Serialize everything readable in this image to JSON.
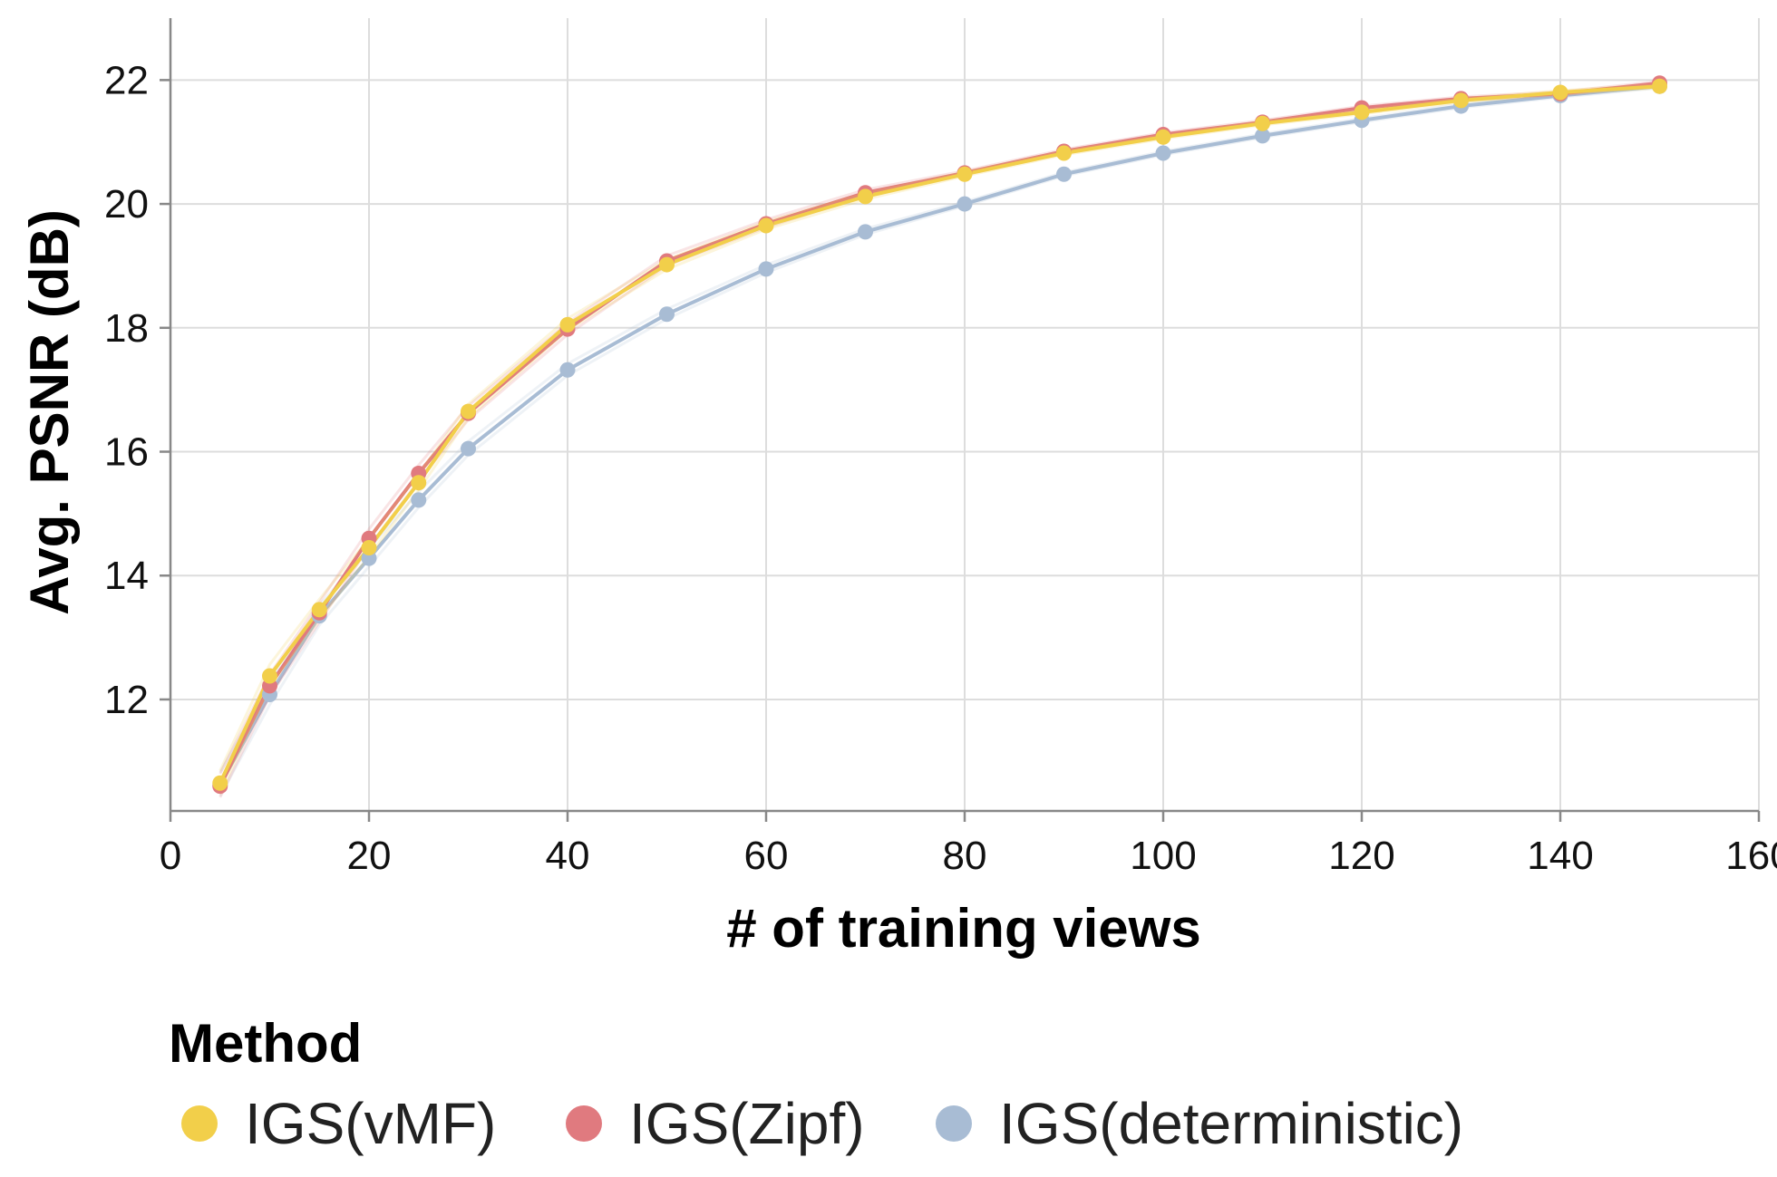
{
  "chart_data": {
    "type": "line",
    "title": "",
    "xlabel": "# of training views",
    "ylabel": "Avg. PSNR (dB)",
    "xlim": [
      0,
      160
    ],
    "ylim": [
      10.2,
      23
    ],
    "xticks": [
      0,
      20,
      40,
      60,
      80,
      100,
      120,
      140,
      160
    ],
    "yticks": [
      12,
      14,
      16,
      18,
      20,
      22
    ],
    "grid": true,
    "legend": {
      "title": "Method",
      "position": "bottom-left"
    },
    "x": [
      5,
      10,
      15,
      20,
      25,
      30,
      40,
      50,
      60,
      70,
      80,
      90,
      100,
      110,
      120,
      130,
      140,
      150
    ],
    "series": [
      {
        "name": "IGS(vMF)",
        "color": "#f2cf4a",
        "values": [
          10.65,
          12.38,
          13.45,
          14.45,
          15.5,
          16.65,
          18.05,
          19.02,
          19.65,
          20.12,
          20.48,
          20.82,
          21.08,
          21.3,
          21.48,
          21.67,
          21.8,
          21.9
        ]
      },
      {
        "name": "IGS(Zipf)",
        "color": "#e07a7f",
        "values": [
          10.6,
          12.22,
          13.4,
          14.6,
          15.65,
          16.62,
          17.98,
          19.08,
          19.68,
          20.18,
          20.5,
          20.85,
          21.12,
          21.32,
          21.55,
          21.7,
          21.78,
          21.95
        ]
      },
      {
        "name": "IGS(deterministic)",
        "color": "#a8bcd4",
        "values": [
          10.62,
          12.08,
          13.35,
          14.28,
          15.22,
          16.05,
          17.32,
          18.22,
          18.95,
          19.55,
          20.0,
          20.48,
          20.82,
          21.1,
          21.35,
          21.58,
          21.75,
          21.9
        ]
      }
    ]
  }
}
